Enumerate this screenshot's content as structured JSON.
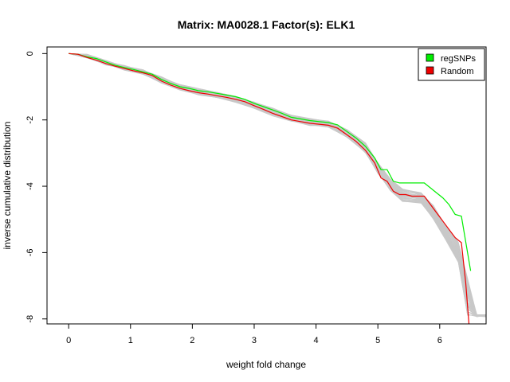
{
  "chart_data": {
    "type": "line",
    "title": "Matrix: MA0028.1 Factor(s): ELK1",
    "xlabel": "weight fold change",
    "ylabel": "inverse cumulative distribution",
    "xlim": [
      -0.35,
      6.75
    ],
    "ylim": [
      -8.15,
      0.2
    ],
    "xticks": [
      "0",
      "1",
      "2",
      "3",
      "4",
      "5",
      "6"
    ],
    "yticks": [
      "0",
      "-2",
      "-4",
      "-6",
      "-8"
    ],
    "legend": {
      "position": "top-right",
      "entries": [
        "regSNPs",
        "Random"
      ]
    },
    "colors": {
      "regSNPs": "#00ee00",
      "Random": "#ee0000",
      "background_runs": "#c8c8c8"
    },
    "series": [
      {
        "name": "regSNPs",
        "x": [
          0,
          0.15,
          0.3,
          0.45,
          0.6,
          0.75,
          0.9,
          1.05,
          1.2,
          1.35,
          1.5,
          1.65,
          1.8,
          1.95,
          2.1,
          2.25,
          2.4,
          2.55,
          2.7,
          2.85,
          3.0,
          3.15,
          3.3,
          3.45,
          3.6,
          3.75,
          3.9,
          4.05,
          4.2,
          4.35,
          4.5,
          4.65,
          4.8,
          4.95,
          5.05,
          5.15,
          5.25,
          5.35,
          5.45,
          5.55,
          5.65,
          5.75,
          5.85,
          5.95,
          6.05,
          6.15,
          6.25,
          6.35,
          6.5
        ],
        "y": [
          0,
          -0.02,
          -0.1,
          -0.15,
          -0.25,
          -0.35,
          -0.42,
          -0.48,
          -0.55,
          -0.62,
          -0.78,
          -0.9,
          -1.0,
          -1.05,
          -1.12,
          -1.15,
          -1.2,
          -1.25,
          -1.3,
          -1.38,
          -1.5,
          -1.6,
          -1.7,
          -1.8,
          -1.92,
          -1.97,
          -2.02,
          -2.05,
          -2.08,
          -2.15,
          -2.35,
          -2.55,
          -2.8,
          -3.15,
          -3.5,
          -3.5,
          -3.85,
          -3.9,
          -3.9,
          -3.9,
          -3.9,
          -3.9,
          -4.05,
          -4.2,
          -4.35,
          -4.55,
          -4.85,
          -4.9,
          -6.55
        ]
      },
      {
        "name": "Random",
        "x": [
          0,
          0.15,
          0.3,
          0.45,
          0.6,
          0.75,
          0.9,
          1.05,
          1.2,
          1.35,
          1.5,
          1.65,
          1.8,
          1.95,
          2.1,
          2.25,
          2.4,
          2.55,
          2.7,
          2.85,
          3.0,
          3.15,
          3.3,
          3.45,
          3.6,
          3.75,
          3.9,
          4.05,
          4.2,
          4.35,
          4.5,
          4.65,
          4.8,
          4.95,
          5.05,
          5.15,
          5.25,
          5.35,
          5.45,
          5.55,
          5.65,
          5.75,
          5.85,
          5.95,
          6.05,
          6.15,
          6.25,
          6.35,
          6.42,
          6.48
        ],
        "y": [
          0,
          -0.02,
          -0.12,
          -0.2,
          -0.3,
          -0.38,
          -0.45,
          -0.52,
          -0.58,
          -0.66,
          -0.83,
          -0.95,
          -1.05,
          -1.12,
          -1.18,
          -1.22,
          -1.27,
          -1.32,
          -1.38,
          -1.45,
          -1.57,
          -1.68,
          -1.8,
          -1.9,
          -2.0,
          -2.05,
          -2.1,
          -2.13,
          -2.16,
          -2.25,
          -2.45,
          -2.65,
          -2.92,
          -3.3,
          -3.75,
          -3.85,
          -4.15,
          -4.25,
          -4.25,
          -4.3,
          -4.3,
          -4.3,
          -4.55,
          -4.8,
          -5.05,
          -5.3,
          -5.55,
          -5.7,
          -6.9,
          -8.3
        ]
      }
    ],
    "background_runs": {
      "count": 40,
      "x": [
        0,
        0.3,
        0.6,
        0.9,
        1.2,
        1.5,
        1.8,
        2.1,
        2.4,
        2.7,
        3.0,
        3.3,
        3.6,
        3.9,
        4.2,
        4.5,
        4.8,
        5.0,
        5.2,
        5.4,
        5.7,
        5.9,
        6.1,
        6.3,
        6.45,
        6.6,
        6.75
      ],
      "y_low": [
        0,
        -0.12,
        -0.32,
        -0.48,
        -0.6,
        -0.88,
        -1.08,
        -1.22,
        -1.32,
        -1.45,
        -1.65,
        -1.85,
        -2.05,
        -2.15,
        -2.2,
        -2.5,
        -3.0,
        -3.6,
        -4.1,
        -4.45,
        -4.5,
        -5.0,
        -5.6,
        -6.3,
        -7.9,
        -7.9,
        -7.9
      ],
      "y_high": [
        0,
        -0.05,
        -0.22,
        -0.38,
        -0.5,
        -0.72,
        -0.95,
        -1.08,
        -1.18,
        -1.3,
        -1.48,
        -1.65,
        -1.88,
        -1.98,
        -2.05,
        -2.3,
        -2.7,
        -3.3,
        -3.8,
        -4.1,
        -4.2,
        -4.6,
        -5.2,
        -5.7,
        -6.8,
        -7.9,
        -7.9
      ]
    }
  }
}
